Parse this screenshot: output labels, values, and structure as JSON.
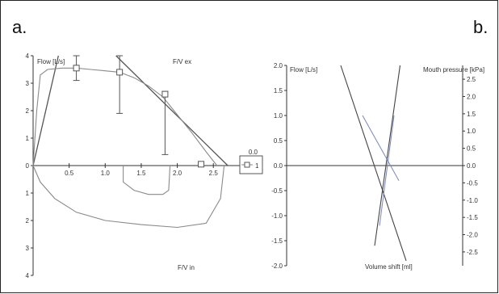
{
  "panel_labels": {
    "a": "a.",
    "b": "b."
  },
  "chart_data": [
    {
      "type": "line",
      "panel": "a.",
      "labels": {
        "flow": "Flow [L/s]",
        "expiration": "F/V ex",
        "inspiration": "F/V in"
      },
      "legend": {
        "entries": [
          "1"
        ],
        "placement": "right",
        "side_value": "0.0"
      },
      "x_ticks": [
        "0.5",
        "1.0",
        "1.5",
        "2.0",
        "2.5"
      ],
      "y_ticks_expiration": [
        "0",
        "1",
        "2",
        "3",
        "4"
      ],
      "y_ticks_inspiration": [
        "1",
        "2",
        "3",
        "4"
      ],
      "xlim": [
        0,
        2.8
      ],
      "ylim_expiration": [
        0,
        4
      ],
      "ylim_inspiration": [
        0,
        4
      ],
      "grid": false,
      "series": [
        {
          "values_ex": [
            [
              0,
              0
            ],
            [
              0.05,
              2.0
            ],
            [
              0.1,
              3.3
            ],
            [
              0.2,
              3.5
            ],
            [
              0.4,
              3.55
            ],
            [
              0.6,
              3.55
            ],
            [
              0.8,
              3.5
            ],
            [
              1.0,
              3.45
            ],
            [
              1.2,
              3.4
            ],
            [
              1.4,
              3.2
            ],
            [
              1.6,
              2.9
            ],
            [
              1.8,
              2.5
            ],
            [
              2.0,
              1.85
            ],
            [
              2.2,
              1.2
            ],
            [
              2.4,
              0.5
            ],
            [
              2.55,
              0
            ]
          ],
          "values_in": [
            [
              0,
              0
            ],
            [
              0.1,
              0.6
            ],
            [
              0.3,
              1.2
            ],
            [
              0.6,
              1.7
            ],
            [
              1.0,
              2.0
            ],
            [
              1.5,
              2.15
            ],
            [
              2.0,
              2.25
            ],
            [
              2.4,
              2.1
            ],
            [
              2.6,
              1.2
            ],
            [
              2.65,
              0
            ]
          ],
          "values_in_secondary": [
            [
              1.25,
              0
            ],
            [
              1.25,
              0.6
            ],
            [
              1.4,
              0.9
            ],
            [
              1.6,
              1.05
            ],
            [
              1.8,
              1.05
            ],
            [
              1.88,
              0.9
            ],
            [
              1.9,
              0
            ]
          ]
        }
      ],
      "reference_lines": [
        {
          "points": [
            [
              0,
              0
            ],
            [
              0.35,
              4.0
            ]
          ]
        },
        {
          "points": [
            [
              1.15,
              4.0
            ],
            [
              2.7,
              0
            ]
          ]
        }
      ],
      "markers": [
        {
          "x": 0.6,
          "y": 3.55,
          "err_low": 3.1,
          "err_high": 4.0
        },
        {
          "x": 1.2,
          "y": 3.4,
          "err_low": 1.9,
          "err_high": 4.0
        },
        {
          "x": 1.83,
          "y": 2.6,
          "err_low": 0.4,
          "err_high": 2.7
        },
        {
          "x": 2.33,
          "y": 0.05
        }
      ]
    },
    {
      "type": "line",
      "panel": "b.",
      "labels": {
        "flow": "Flow [L/s]",
        "pressure": "Mouth pressure [kPa]",
        "volume": "Volume shift [ml]"
      },
      "left_ticks": [
        "2.0",
        "1.5",
        "1.0",
        "0.5",
        "0.0",
        "-0.5",
        "-1.0",
        "-1.5",
        "-2.0"
      ],
      "right_ticks": [
        "2.5",
        "2.0",
        "1.5",
        "1.0",
        "0.5",
        "0.0",
        "-0.5",
        "-1.0",
        "-1.5",
        "-2.0",
        "-2.5"
      ],
      "ylim_left": [
        -2.0,
        2.0
      ],
      "ylim_right": [
        -2.9,
        2.9
      ],
      "grid": false,
      "lines": [
        {
          "points": [
            [
              -1.9,
              2.0
            ],
            [
              0.8,
              -1.9
            ]
          ]
        },
        {
          "points": [
            [
              0.55,
              2.0
            ],
            [
              -0.5,
              -1.6
            ]
          ]
        },
        {
          "points": [
            [
              -1.0,
              1.0
            ],
            [
              0.5,
              -0.3
            ]
          ]
        },
        {
          "points": [
            [
              0.3,
              1.0
            ],
            [
              -0.3,
              -1.2
            ]
          ]
        }
      ],
      "x_range": [
        -3.0,
        2.5
      ]
    }
  ]
}
